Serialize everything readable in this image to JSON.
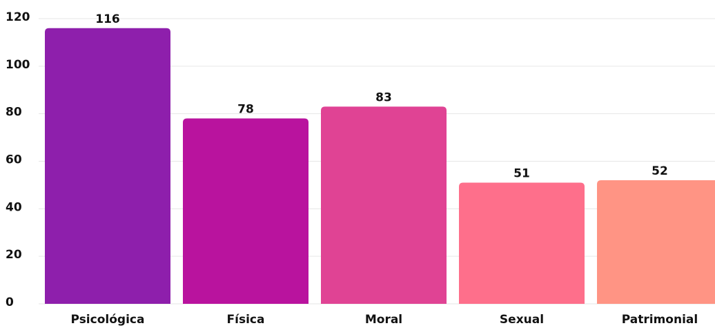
{
  "chart_data": {
    "type": "bar",
    "categories": [
      "Psicológica",
      "Física",
      "Moral",
      "Sexual",
      "Patrimonial"
    ],
    "values": [
      116,
      78,
      83,
      51,
      52
    ],
    "colors": [
      "#8e1fac",
      "#b9139e",
      "#e04394",
      "#fe6f8b",
      "#ff9484"
    ],
    "ylim": [
      0,
      120
    ],
    "yticks": [
      0,
      20,
      40,
      60,
      80,
      100,
      120
    ],
    "grid": true
  }
}
